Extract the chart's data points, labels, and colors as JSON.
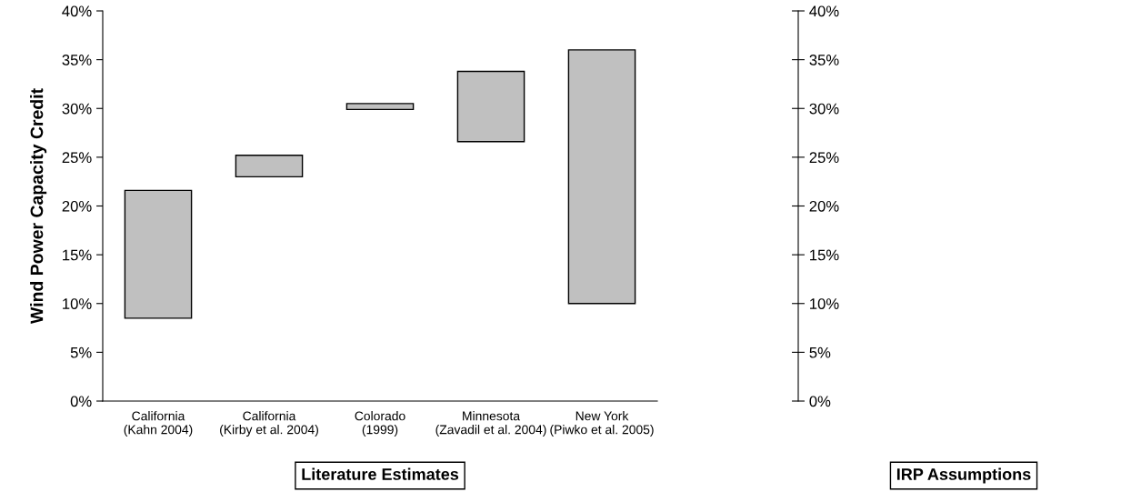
{
  "chart_data": {
    "type": "bar",
    "ylabel": "Wind Power Capacity Credit",
    "categories": [
      "California\n(Kahn 2004)",
      "California\n(Kirby et al. 2004)",
      "Colorado\n(1999)",
      "Minnesota\n(Zavadil et al. 2004)",
      "New York\n(Piwko et al. 2005)"
    ],
    "base": [
      8.5,
      23.0,
      29.9,
      26.6,
      10.0
    ],
    "values": [
      13.1,
      2.2,
      0.6,
      7.2,
      26.0
    ],
    "color": "#c0c0c0",
    "ylim": [
      0,
      40
    ],
    "yticks": [
      {
        "value": 0,
        "label": "0%"
      },
      {
        "value": 5,
        "label": "5%"
      },
      {
        "value": 10,
        "label": "10%"
      },
      {
        "value": 15,
        "label": "15%"
      },
      {
        "value": 20,
        "label": "20%"
      },
      {
        "value": 25,
        "label": "25%"
      },
      {
        "value": 30,
        "label": "30%"
      },
      {
        "value": 35,
        "label": "35%"
      },
      {
        "value": 40,
        "label": "40%"
      }
    ],
    "annotations": [
      "Literature Estimates",
      "IRP Assumptions"
    ],
    "grid": false,
    "legend": false
  }
}
